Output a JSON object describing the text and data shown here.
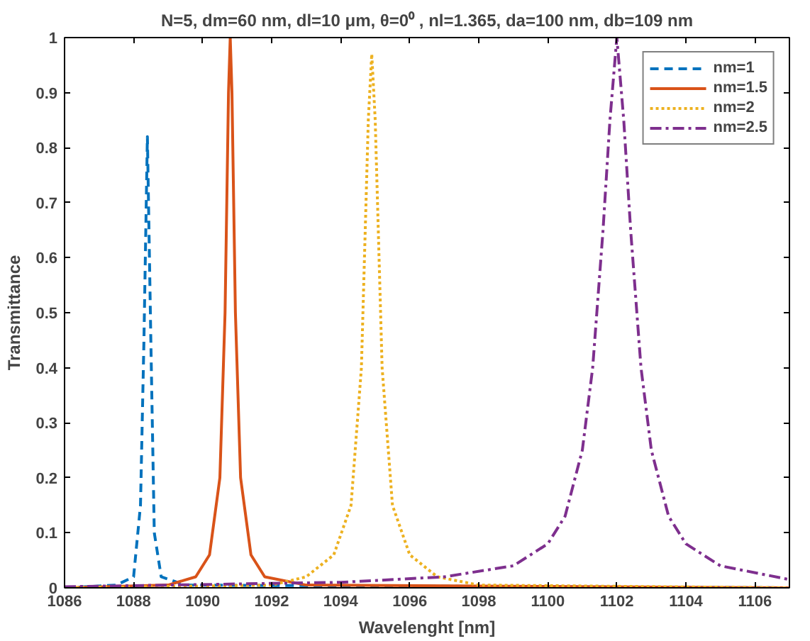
{
  "chart_data": {
    "type": "line",
    "title": "N=5, dm=60 nm, dl=10 μm, θ=0⁰ , nl=1.365, da=100 nm, db=109 nm",
    "xlabel": "Wavelenght [nm]",
    "ylabel": "Transmittance",
    "xlim": [
      1086,
      1107
    ],
    "xticks": [
      1086,
      1088,
      1090,
      1092,
      1094,
      1096,
      1098,
      1100,
      1102,
      1104,
      1106
    ],
    "ylim": [
      0,
      1
    ],
    "yticks": [
      0,
      0.1,
      0.2,
      0.3,
      0.4,
      0.5,
      0.6,
      0.7,
      0.8,
      0.9,
      1
    ],
    "grid": false,
    "legend": "top right",
    "marker": "none",
    "series": [
      {
        "name": "nm=1",
        "color": "#0072bd",
        "line_style": "dashed",
        "x": [
          1086,
          1087.5,
          1088.0,
          1088.2,
          1088.3,
          1088.4,
          1088.5,
          1088.6,
          1088.8,
          1089.5,
          1107
        ],
        "values": [
          0,
          0.005,
          0.02,
          0.15,
          0.45,
          0.82,
          0.45,
          0.1,
          0.02,
          0.005,
          0
        ]
      },
      {
        "name": "nm=1.5",
        "color": "#d95319",
        "line_style": "solid",
        "x": [
          1086,
          1089,
          1089.8,
          1090.2,
          1090.5,
          1090.65,
          1090.75,
          1090.8,
          1090.85,
          1090.95,
          1091.1,
          1091.4,
          1091.8,
          1093,
          1107
        ],
        "values": [
          0,
          0.005,
          0.02,
          0.06,
          0.2,
          0.5,
          0.9,
          1.0,
          0.9,
          0.5,
          0.2,
          0.06,
          0.02,
          0.005,
          0
        ]
      },
      {
        "name": "nm=2",
        "color": "#edb120",
        "line_style": "dotted",
        "x": [
          1086,
          1092,
          1093,
          1093.8,
          1094.3,
          1094.6,
          1094.8,
          1094.9,
          1095.0,
          1095.2,
          1095.5,
          1096,
          1096.8,
          1098,
          1107
        ],
        "values": [
          0,
          0.005,
          0.02,
          0.06,
          0.15,
          0.4,
          0.85,
          0.97,
          0.85,
          0.4,
          0.15,
          0.06,
          0.02,
          0.005,
          0
        ]
      },
      {
        "name": "nm=2.5",
        "color": "#7e2f8e",
        "line_style": "dashdot",
        "x": [
          1086,
          1094,
          1097,
          1099,
          1100,
          1100.5,
          1101,
          1101.3,
          1101.6,
          1101.8,
          1102,
          1102.2,
          1102.4,
          1102.7,
          1103,
          1103.5,
          1104,
          1105,
          1107
        ],
        "values": [
          0.002,
          0.01,
          0.02,
          0.04,
          0.08,
          0.13,
          0.25,
          0.4,
          0.65,
          0.85,
          1.0,
          0.85,
          0.65,
          0.4,
          0.25,
          0.13,
          0.08,
          0.04,
          0.015
        ]
      }
    ]
  }
}
